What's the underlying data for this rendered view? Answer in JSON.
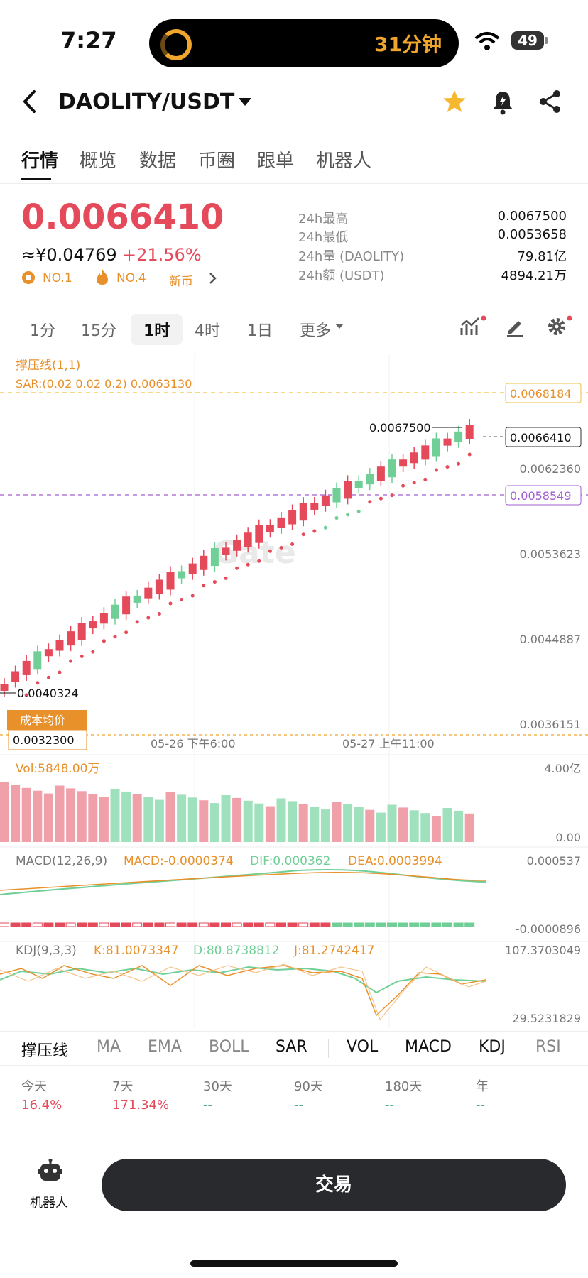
{
  "status": {
    "time": "7:27",
    "island_text": "31分钟",
    "battery": "49"
  },
  "header": {
    "pair": "DAOLITY/USDT"
  },
  "tabs": [
    "行情",
    "概览",
    "数据",
    "币圈",
    "跟单",
    "机器人"
  ],
  "ticker": {
    "price": "0.0066410",
    "cny": "≈¥0.04769",
    "change": "+21.56%",
    "badges": [
      "NO.1",
      "NO.4",
      "新币"
    ],
    "stats": [
      {
        "label": "24h最高",
        "value": "0.0067500"
      },
      {
        "label": "24h最低",
        "value": "0.0053658"
      },
      {
        "label": "24h量 (DAOLITY)",
        "value": "79.81亿"
      },
      {
        "label": "24h额 (USDT)",
        "value": "4894.21万"
      }
    ]
  },
  "timeframes": [
    "1分",
    "15分",
    "1时",
    "4时",
    "1日",
    "更多"
  ],
  "chart": {
    "indicator_title": "撑压线(1,1)",
    "sar_label": "SAR:(0.02 0.02 0.2) 0.0063130",
    "price_axis": [
      "0.0062360",
      "0.0053623",
      "0.0044887",
      "0.0036151"
    ],
    "resistance_label": "0.0068184",
    "current_label": "0.0066410",
    "support_label": "0.0058549",
    "high_label": "0.0067500",
    "low_label": "0.0040324",
    "cost_label": "成本均价",
    "cost_value": "0.0032300",
    "time_axis": [
      "05-26 下午6:00",
      "05-27 上午11:00"
    ],
    "watermark": "Gate",
    "vol_label": "Vol:5848.00万",
    "vol_axis": [
      "4.00亿",
      "0.00"
    ],
    "macd_label": "MACD(12,26,9)",
    "macd_value": "MACD:-0.0000374",
    "dif_value": "DIF:0.000362",
    "dea_value": "DEA:0.0003994",
    "macd_axis": [
      "0.000537",
      "-0.0000896"
    ],
    "kdj_label": "KDJ(9,3,3)",
    "k_value": "K:81.0073347",
    "d_value": "D:80.8738812",
    "j_value": "J:81.2742417",
    "kdj_axis": [
      "107.3703049",
      "29.5231829"
    ]
  },
  "indicators": [
    "撑压线",
    "MA",
    "EMA",
    "BOLL",
    "SAR",
    "VOL",
    "MACD",
    "KDJ",
    "RSI"
  ],
  "performance": [
    {
      "label": "今天",
      "value": "16.4%"
    },
    {
      "label": "7天",
      "value": "171.34%"
    },
    {
      "label": "30天",
      "value": "--"
    },
    {
      "label": "90天",
      "value": "--"
    },
    {
      "label": "180天",
      "value": "--"
    },
    {
      "label": "年",
      "value": "--"
    }
  ],
  "bottom": {
    "robot_label": "机器人",
    "trade_label": "交易"
  },
  "colors": {
    "up": "#e54a5b",
    "down": "#6fcf97",
    "accent": "#f0a52b",
    "support": "#a25ed0"
  }
}
